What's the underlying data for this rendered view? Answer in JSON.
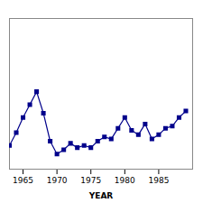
{
  "chart_data": {
    "type": "line",
    "xlabel": "YEAR",
    "x": [
      1963,
      1964,
      1965,
      1966,
      1967,
      1968,
      1969,
      1970,
      1971,
      1972,
      1973,
      1974,
      1975,
      1976,
      1977,
      1978,
      1979,
      1980,
      1981,
      1982,
      1983,
      1984,
      1985,
      1986,
      1987,
      1988,
      1989
    ],
    "values": [
      71,
      77,
      84,
      90,
      96,
      86,
      73,
      67,
      69,
      72,
      70,
      71,
      70,
      73,
      75,
      74,
      79,
      84,
      78,
      76,
      81,
      74,
      76,
      79,
      80,
      84,
      87
    ],
    "color": "#00008B",
    "marker": "square",
    "xlim": [
      1963,
      1990
    ],
    "xticks": [
      1965,
      1970,
      1975,
      1980,
      1985
    ],
    "ylim": [
      60,
      130
    ],
    "tick_labels": "x",
    "grid": false
  }
}
